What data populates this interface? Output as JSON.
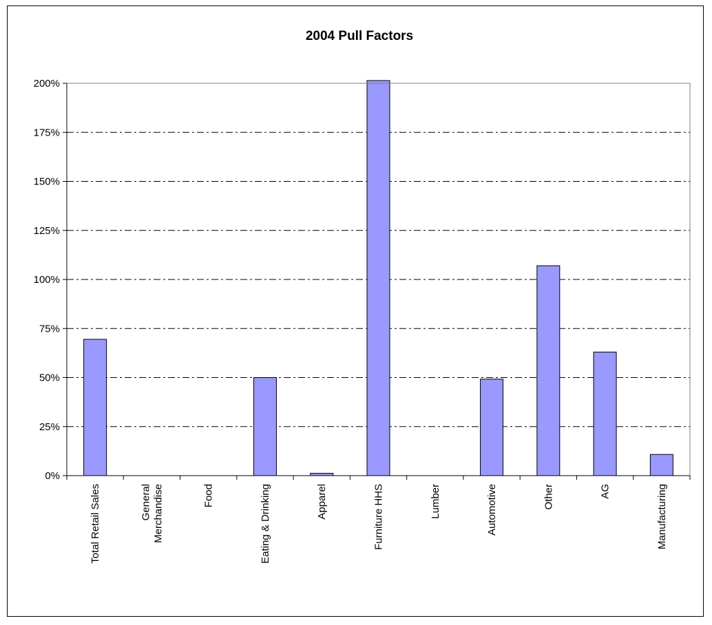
{
  "chart_data": {
    "type": "bar",
    "title": "2004 Pull Factors",
    "xlabel": "",
    "ylabel": "",
    "categories": [
      "Total Retail Sales",
      "General Merchandise",
      "Food",
      "Eating & Drinking",
      "Apparel",
      "Furniture HHS",
      "Lumber",
      "Automotive",
      "Other",
      "AG",
      "Manufacturing"
    ],
    "category_lines": [
      [
        "Total Retail Sales"
      ],
      [
        "General",
        "Merchandise"
      ],
      [
        "Food"
      ],
      [
        "Eating & Drinking"
      ],
      [
        "Apparel"
      ],
      [
        "Furniture HHS"
      ],
      [
        "Lumber"
      ],
      [
        "Automotive"
      ],
      [
        "Other"
      ],
      [
        "AG"
      ],
      [
        "Manufacturing"
      ]
    ],
    "values": [
      69.5,
      0,
      0,
      50,
      1.2,
      201,
      0,
      49.2,
      107,
      63,
      10.8
    ],
    "value_unit": "%",
    "ylim": [
      0,
      200
    ],
    "yticks": [
      0,
      25,
      50,
      75,
      100,
      125,
      150,
      175,
      200
    ],
    "ytick_labels": [
      "0%",
      "25%",
      "50%",
      "75%",
      "100%",
      "125%",
      "150%",
      "175%",
      "200%"
    ],
    "grid": true,
    "legend": "none",
    "colors": {
      "bar_fill": "#9999ff",
      "bar_stroke": "#000000",
      "grid": "#000000",
      "axis": "#808080"
    }
  }
}
